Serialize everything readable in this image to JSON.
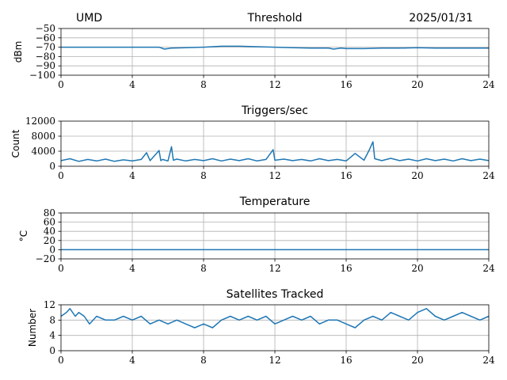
{
  "header": {
    "left": "UMD",
    "center": "Threshold",
    "right": "2025/01/31"
  },
  "style": {
    "line_color": "#1f77b4",
    "grid_color": "#b0b0b0",
    "axis_color": "#000000"
  },
  "chart_data": [
    {
      "type": "line",
      "title": "Threshold",
      "xlabel": "",
      "ylabel": "dBm",
      "xlim": [
        0,
        24
      ],
      "ylim": [
        -100,
        -50
      ],
      "xticks": [
        0,
        4,
        8,
        12,
        16,
        20,
        24
      ],
      "yticks": [
        -100,
        -90,
        -80,
        -70,
        -60,
        -50
      ],
      "ytick_labels": [
        "−100",
        "−90",
        "−80",
        "−70",
        "−60",
        "−50"
      ],
      "grid": true,
      "series": [
        {
          "x": [
            0,
            1,
            2,
            3,
            4,
            5,
            5.5,
            5.8,
            6.2,
            7,
            8,
            8.5,
            9,
            10,
            11,
            12,
            13,
            14,
            15,
            15.3,
            15.7,
            16,
            17,
            18,
            19,
            20,
            21,
            22,
            23,
            24
          ],
          "values": [
            -70,
            -70,
            -70,
            -70,
            -70,
            -70,
            -70,
            -72,
            -71,
            -70.5,
            -70,
            -69.5,
            -69,
            -69,
            -69.5,
            -70,
            -70.5,
            -71,
            -71,
            -72,
            -71,
            -71.5,
            -71.5,
            -71,
            -71,
            -70.5,
            -71,
            -71,
            -71,
            -71
          ]
        }
      ]
    },
    {
      "type": "line",
      "title": "Triggers/sec",
      "xlabel": "",
      "ylabel": "Count",
      "xlim": [
        0,
        24
      ],
      "ylim": [
        0,
        12000
      ],
      "xticks": [
        0,
        4,
        8,
        12,
        16,
        20,
        24
      ],
      "yticks": [
        0,
        4000,
        8000,
        12000
      ],
      "ytick_labels": [
        "0",
        "4000",
        "8000",
        "12000"
      ],
      "grid": true,
      "series": [
        {
          "x": [
            0,
            0.5,
            1,
            1.5,
            2,
            2.5,
            3,
            3.5,
            4,
            4.5,
            4.8,
            5,
            5.5,
            5.6,
            5.7,
            6,
            6.2,
            6.3,
            6.5,
            7,
            7.5,
            8,
            8.5,
            9,
            9.5,
            10,
            10.5,
            11,
            11.5,
            11.9,
            12,
            12.5,
            13,
            13.5,
            14,
            14.5,
            15,
            15.5,
            16,
            16.5,
            17,
            17.3,
            17.5,
            17.6,
            18,
            18.5,
            19,
            19.5,
            20,
            20.5,
            21,
            21.5,
            22,
            22.5,
            23,
            23.5,
            24
          ],
          "values": [
            1500,
            2000,
            1300,
            1800,
            1400,
            1900,
            1300,
            1700,
            1400,
            1800,
            3600,
            1500,
            4200,
            1500,
            1800,
            1400,
            5200,
            1600,
            1900,
            1400,
            1800,
            1500,
            2000,
            1400,
            1900,
            1500,
            2000,
            1400,
            1800,
            4400,
            1600,
            1900,
            1500,
            1800,
            1400,
            2000,
            1500,
            1800,
            1400,
            3400,
            1600,
            4400,
            6500,
            2000,
            1500,
            2100,
            1500,
            1900,
            1400,
            2000,
            1500,
            1900,
            1400,
            2000,
            1500,
            1900,
            1500
          ]
        }
      ]
    },
    {
      "type": "line",
      "title": "Temperature",
      "xlabel": "",
      "ylabel": "°C",
      "xlim": [
        0,
        24
      ],
      "ylim": [
        -20,
        80
      ],
      "xticks": [
        0,
        4,
        8,
        12,
        16,
        20,
        24
      ],
      "yticks": [
        -20,
        0,
        20,
        40,
        60,
        80
      ],
      "ytick_labels": [
        "−20",
        "0",
        "20",
        "40",
        "60",
        "80"
      ],
      "grid": true,
      "series": [
        {
          "x": [
            0,
            24
          ],
          "values": [
            0,
            0
          ]
        }
      ]
    },
    {
      "type": "line",
      "title": "Satellites Tracked",
      "xlabel": "",
      "ylabel": "Number",
      "xlim": [
        0,
        24
      ],
      "ylim": [
        0,
        12
      ],
      "xticks": [
        0,
        4,
        8,
        12,
        16,
        20,
        24
      ],
      "yticks": [
        0,
        4,
        8,
        12
      ],
      "ytick_labels": [
        "0",
        "4",
        "8",
        "12"
      ],
      "grid": true,
      "series": [
        {
          "x": [
            0,
            0.3,
            0.5,
            0.8,
            1,
            1.3,
            1.6,
            2,
            2.5,
            3,
            3.5,
            4,
            4.5,
            5,
            5.5,
            6,
            6.5,
            7,
            7.5,
            8,
            8.5,
            9,
            9.5,
            10,
            10.5,
            11,
            11.5,
            12,
            12.5,
            13,
            13.5,
            14,
            14.5,
            15,
            15.5,
            16,
            16.5,
            17,
            17.5,
            18,
            18.5,
            19,
            19.5,
            20,
            20.5,
            21,
            21.5,
            22,
            22.5,
            23,
            23.5,
            24
          ],
          "values": [
            9,
            10,
            11,
            9,
            10,
            9,
            7,
            9,
            8,
            8,
            9,
            8,
            9,
            7,
            8,
            7,
            8,
            7,
            6,
            7,
            6,
            8,
            9,
            8,
            9,
            8,
            9,
            7,
            8,
            9,
            8,
            9,
            7,
            8,
            8,
            7,
            6,
            8,
            9,
            8,
            10,
            9,
            8,
            10,
            11,
            9,
            8,
            9,
            10,
            9,
            8,
            9
          ]
        }
      ]
    }
  ]
}
